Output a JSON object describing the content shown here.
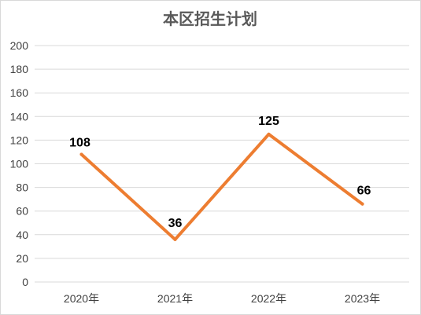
{
  "chart_data": {
    "type": "line",
    "title": "本区招生计划",
    "categories": [
      "2020年",
      "2021年",
      "2022年",
      "2023年"
    ],
    "series": [
      {
        "values": [
          108,
          36,
          125,
          66
        ]
      }
    ],
    "data_labels": [
      "108",
      "36",
      "125",
      "66"
    ],
    "y_ticks": [
      "0",
      "20",
      "40",
      "60",
      "80",
      "100",
      "120",
      "140",
      "160",
      "180",
      "200"
    ],
    "ylim": [
      0,
      200
    ],
    "grid": true,
    "legend": "none",
    "line_color": "#ed7d31"
  }
}
